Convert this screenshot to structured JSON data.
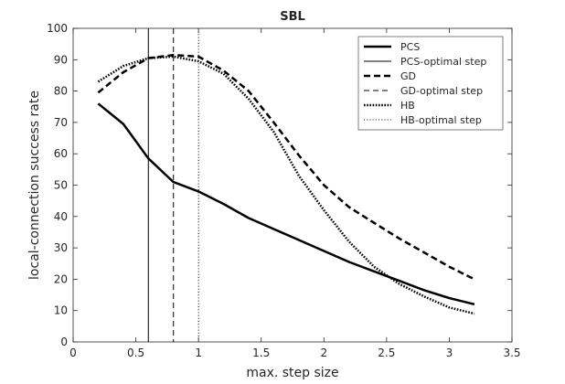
{
  "chart_data": {
    "type": "line",
    "title": "SBL",
    "xlabel": "max. step size",
    "ylabel": "local-connection success rate",
    "xlim": [
      0,
      3.5
    ],
    "ylim": [
      0,
      100
    ],
    "x_ticks": [
      0,
      0.5,
      1,
      1.5,
      2,
      2.5,
      3,
      3.5
    ],
    "x_tick_labels": [
      "0",
      "0.5",
      "1",
      "1.5",
      "2",
      "2.5",
      "3",
      "3.5"
    ],
    "y_ticks": [
      0,
      10,
      20,
      30,
      40,
      50,
      60,
      70,
      80,
      90,
      100
    ],
    "y_tick_labels": [
      "0",
      "10",
      "20",
      "30",
      "40",
      "50",
      "60",
      "70",
      "80",
      "90",
      "100"
    ],
    "grid": false,
    "legend_position": "top-right",
    "series": [
      {
        "name": "PCS",
        "style": "solid-thick",
        "x": [
          0.2,
          0.4,
          0.6,
          0.8,
          1.0,
          1.2,
          1.4,
          1.6,
          1.8,
          2.0,
          2.2,
          2.4,
          2.6,
          2.8,
          3.0,
          3.2
        ],
        "y": [
          76,
          69.5,
          58.5,
          51,
          48,
          44,
          39.5,
          36,
          32.5,
          29,
          25.5,
          22.5,
          19.5,
          16.5,
          14,
          12
        ]
      },
      {
        "name": "GD",
        "style": "dashed-thick",
        "x": [
          0.2,
          0.4,
          0.6,
          0.8,
          1.0,
          1.2,
          1.4,
          1.6,
          1.8,
          2.0,
          2.2,
          2.4,
          2.6,
          2.8,
          3.0,
          3.2
        ],
        "y": [
          79.5,
          86,
          90.5,
          91.5,
          91,
          86.5,
          80,
          70,
          59.5,
          50,
          43,
          38,
          33,
          28.5,
          24,
          20
        ]
      },
      {
        "name": "HB",
        "style": "dotted-thick",
        "x": [
          0.2,
          0.4,
          0.6,
          0.8,
          1.0,
          1.2,
          1.4,
          1.6,
          1.8,
          2.0,
          2.2,
          2.4,
          2.6,
          2.8,
          3.0,
          3.2
        ],
        "y": [
          83,
          88,
          90.5,
          91,
          89.5,
          85.5,
          77.5,
          67,
          53,
          42,
          32,
          24,
          18.5,
          14.5,
          11,
          9
        ]
      }
    ],
    "vertical_lines": [
      {
        "name": "PCS-optimal step",
        "x": 0.6,
        "style": "solid-thin"
      },
      {
        "name": "GD-optimal step",
        "x": 0.8,
        "style": "dashed-thin"
      },
      {
        "name": "HB-optimal step",
        "x": 1.0,
        "style": "dotted-thin"
      }
    ],
    "legend": [
      "PCS",
      "PCS-optimal step",
      "GD",
      "GD-optimal step",
      "HB",
      "HB-optimal step"
    ],
    "colors": {
      "line": "#000000",
      "axis": "#262626",
      "background": "#ffffff"
    }
  }
}
